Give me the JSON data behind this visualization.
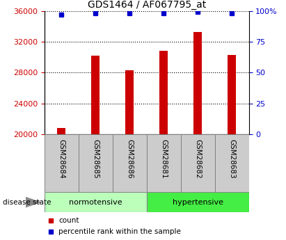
{
  "title": "GDS1464 / AF067795_at",
  "samples": [
    "GSM28684",
    "GSM28685",
    "GSM28686",
    "GSM28681",
    "GSM28682",
    "GSM28683"
  ],
  "counts": [
    20800,
    30200,
    28300,
    30800,
    33300,
    30300
  ],
  "percentile_ranks": [
    97,
    98,
    98,
    98,
    99,
    98
  ],
  "ylim_left": [
    20000,
    36000
  ],
  "ylim_right": [
    0,
    100
  ],
  "yticks_left": [
    20000,
    24000,
    28000,
    32000,
    36000
  ],
  "yticks_right": [
    0,
    25,
    50,
    75,
    100
  ],
  "bar_color": "#cc0000",
  "dot_color": "#0000cc",
  "groups": [
    {
      "label": "normotensive",
      "indices": [
        0,
        1,
        2
      ],
      "color": "#bbffbb"
    },
    {
      "label": "hypertensive",
      "indices": [
        3,
        4,
        5
      ],
      "color": "#44ee44"
    }
  ],
  "sample_box_color": "#cccccc",
  "legend_items": [
    {
      "label": "count",
      "color": "#cc0000"
    },
    {
      "label": "percentile rank within the sample",
      "color": "#0000cc"
    }
  ],
  "disease_state_label": "disease state",
  "title_fontsize": 10,
  "axis_label_color_left": "#cc0000",
  "axis_label_color_right": "#0000cc",
  "bar_width": 0.25
}
